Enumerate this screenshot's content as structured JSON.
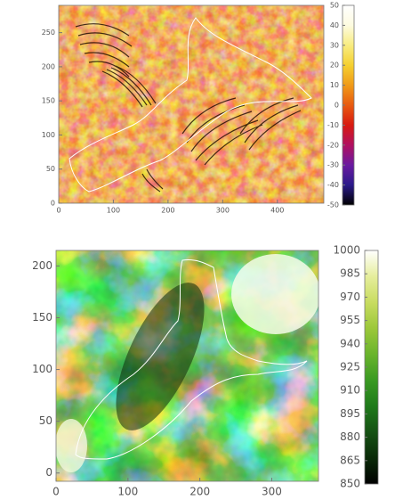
{
  "chart_data": [
    {
      "type": "heatmap",
      "xlim": [
        0,
        485
      ],
      "xticks": [
        0,
        100,
        200,
        300,
        400
      ],
      "ylim": [
        0,
        290
      ],
      "yticks": [
        0,
        50,
        100,
        150,
        200,
        250
      ],
      "colorbar": {
        "lim": [
          -50,
          50
        ],
        "ticks": [
          -50,
          -40,
          -30,
          -20,
          -10,
          0,
          10,
          20,
          30,
          40,
          50
        ],
        "colors": [
          "#000000",
          "#2a1a8a",
          "#6a1aa0",
          "#b01060",
          "#d81a10",
          "#e85a10",
          "#f09a18",
          "#f5d030",
          "#f8ec80",
          "#fdfbe0",
          "#ffffff"
        ]
      }
    },
    {
      "type": "heatmap",
      "xlim": [
        0,
        365
      ],
      "xticks": [
        0,
        100,
        200,
        300
      ],
      "ylim": [
        -8,
        215
      ],
      "yticks": [
        0,
        50,
        100,
        150,
        200
      ],
      "colorbar": {
        "lim": [
          850,
          1000
        ],
        "ticks": [
          850,
          865,
          880,
          895,
          910,
          925,
          940,
          955,
          970,
          985,
          1000
        ],
        "colors": [
          "#000000",
          "#0a2a08",
          "#165214",
          "#1f7a1a",
          "#3a9a22",
          "#6ab42c",
          "#9cc83a",
          "#c8dc60",
          "#e6ee9c",
          "#ffffff"
        ]
      }
    }
  ]
}
